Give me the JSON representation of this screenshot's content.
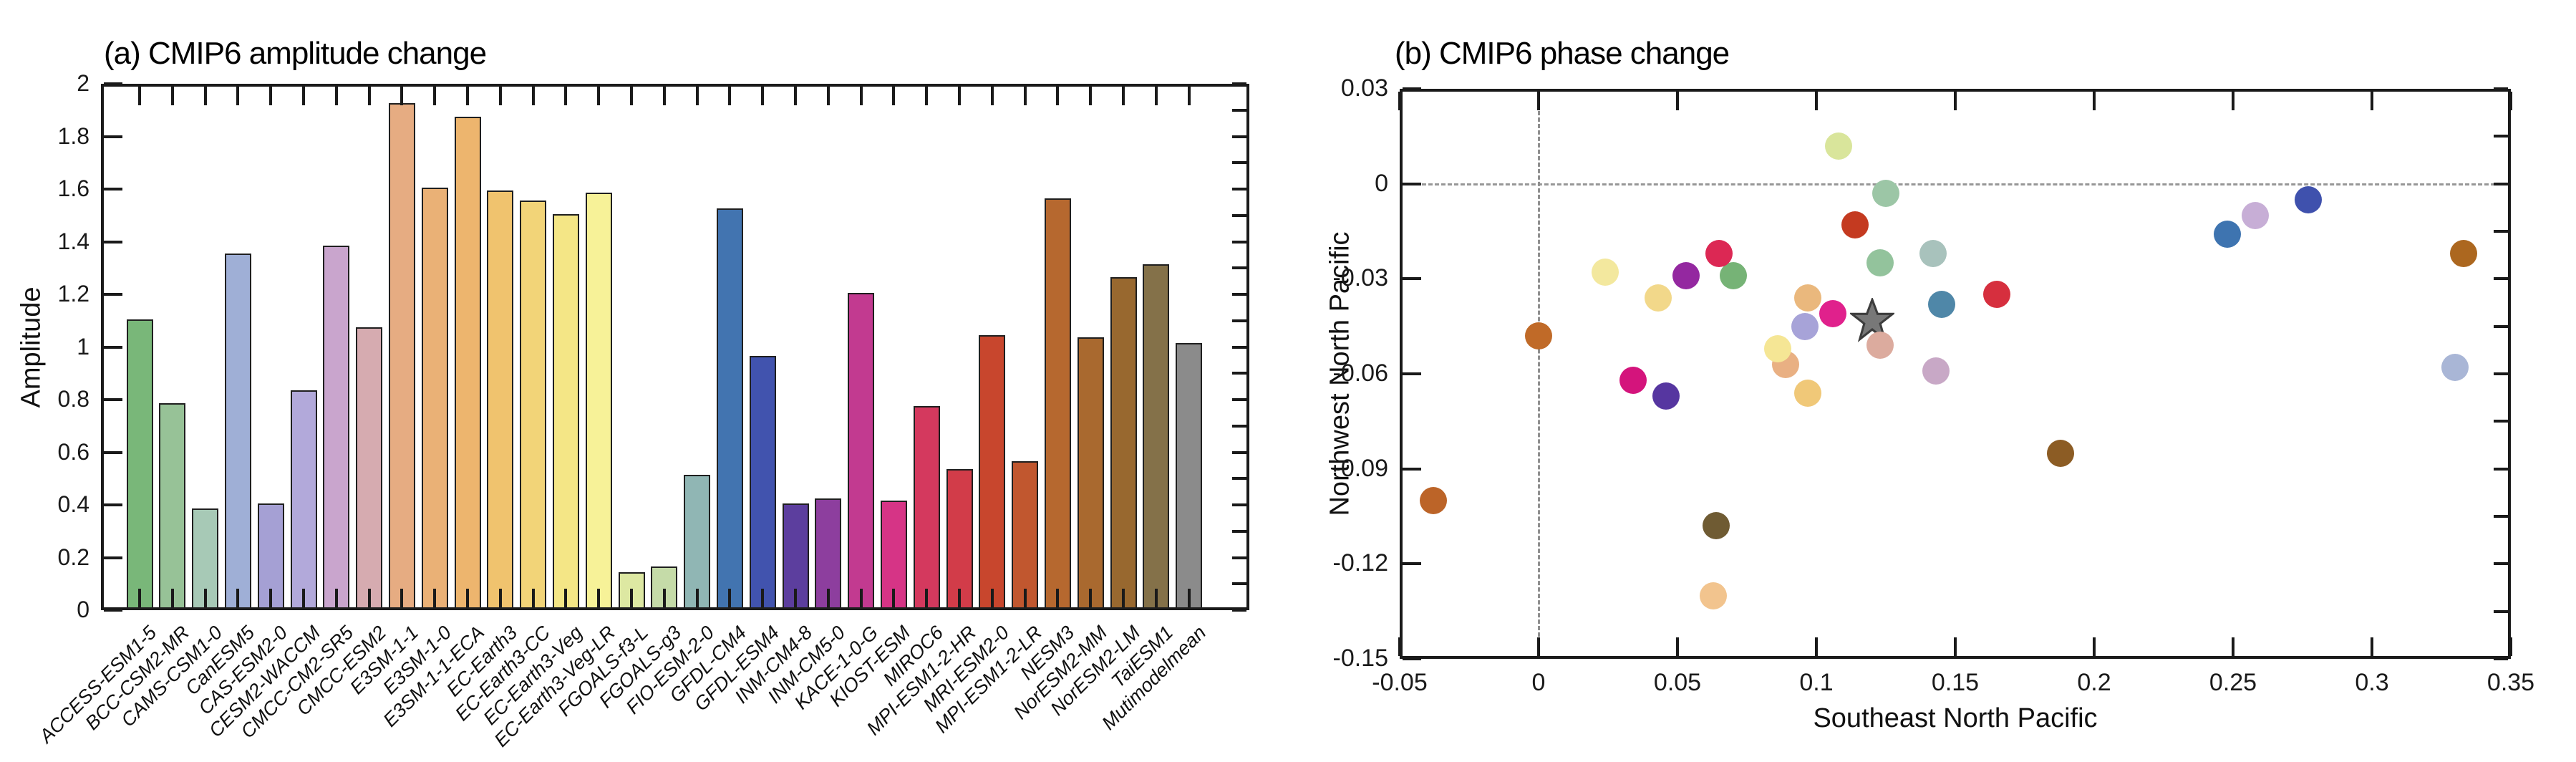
{
  "figure": {
    "background": "#ffffff",
    "panel_count": 2
  },
  "chart_data": [
    {
      "type": "bar",
      "title": "(a) CMIP6 amplitude change",
      "xlabel": "",
      "ylabel": "Amplitude",
      "ylim": [
        0,
        2
      ],
      "grid": false,
      "ytick_values": [
        0,
        0.2,
        0.4,
        0.6,
        0.8,
        1,
        1.2,
        1.4,
        1.6,
        1.8,
        2
      ],
      "ytick_labels": [
        "0",
        "0.2",
        "0.4",
        "0.6",
        "0.8",
        "1",
        "1.2",
        "1.4",
        "1.6",
        "1.8",
        "2"
      ],
      "minor_ytick_step": 0.1,
      "categories": [
        "ACCESS-ESM1-5",
        "BCC-CSM2-MR",
        "CAMS-CSM1-0",
        "CanESM5",
        "CAS-ESM2-0",
        "CESM2-WACCM",
        "CMCC-CM2-SR5",
        "CMCC-ESM2",
        "E3SM-1-1",
        "E3SM-1-0",
        "E3SM-1-1-ECA",
        "EC-Earth3",
        "EC-Earth3-CC",
        "EC-Earth3-Veg",
        "EC-Earth3-Veg-LR",
        "FGOALS-f3-L",
        "FGOALS-g3",
        "FIO-ESM-2-0",
        "GFDL-CM4",
        "GFDL-ESM4",
        "INM-CM4-8",
        "INM-CM5-0",
        "KACE-1-0-G",
        "KIOST-ESM",
        "MIROC6",
        "MPI-ESM1-2-HR",
        "MRI-ESM2-0",
        "MPI-ESM1-2-LR",
        "NESM3",
        "NorESM2-MM",
        "NorESM2-LM",
        "TaiESM1",
        "Mutimodelmean"
      ],
      "values": [
        1.1,
        0.78,
        0.38,
        1.35,
        0.4,
        0.83,
        1.38,
        1.07,
        1.92,
        1.6,
        1.87,
        1.59,
        1.55,
        1.5,
        1.58,
        0.14,
        0.16,
        0.51,
        1.52,
        0.96,
        0.4,
        0.42,
        1.2,
        0.41,
        0.77,
        0.53,
        1.04,
        0.56,
        1.56,
        1.03,
        1.26,
        1.31,
        1.01
      ],
      "colors": [
        "#79b779",
        "#97c297",
        "#a7c9b6",
        "#9fafd6",
        "#a5a0d4",
        "#b2a9da",
        "#c9a5cd",
        "#d6abb0",
        "#e6ac82",
        "#eab176",
        "#edb56e",
        "#f0c36e",
        "#f2d478",
        "#f4e686",
        "#f7f298",
        "#dde8a2",
        "#c5dba8",
        "#90b6b4",
        "#4274b0",
        "#4153ae",
        "#5c3e9e",
        "#8d3e9e",
        "#c23a90",
        "#d63486",
        "#d4395e",
        "#d23c49",
        "#c8462d",
        "#c1572f",
        "#b6682f",
        "#a9692f",
        "#98682f",
        "#847149",
        "#8b8b8b"
      ]
    },
    {
      "type": "scatter",
      "title": "(b) CMIP6 phase change",
      "xlabel": "Southeast North Pacific",
      "ylabel": "Northwest North Pacific",
      "xlim": [
        -0.05,
        0.35
      ],
      "ylim": [
        -0.15,
        0.03
      ],
      "grid": false,
      "zero_lines": "dashed",
      "xtick_values": [
        -0.05,
        0,
        0.05,
        0.1,
        0.15,
        0.2,
        0.25,
        0.3,
        0.35
      ],
      "xtick_labels": [
        "-0.05",
        "0",
        "0.05",
        "0.1",
        "0.15",
        "0.2",
        "0.25",
        "0.3",
        "0.35"
      ],
      "ytick_values": [
        0.03,
        0,
        -0.03,
        -0.06,
        -0.09,
        -0.12,
        -0.15
      ],
      "ytick_labels": [
        "0.03",
        "0",
        "-0.03",
        "-0.06",
        "-0.09",
        "-0.12",
        "-0.15"
      ],
      "minor_ytick_step": 0.015,
      "points": [
        {
          "model": "ACCESS-ESM1-5",
          "x": 0.07,
          "y": -0.029,
          "color": "#76b376"
        },
        {
          "model": "BCC-CSM2-MR",
          "x": 0.123,
          "y": -0.025,
          "color": "#93c39c"
        },
        {
          "model": "CAMS-CSM1-0",
          "x": 0.142,
          "y": -0.022,
          "color": "#a8c2bc"
        },
        {
          "model": "CanESM5",
          "x": 0.33,
          "y": -0.058,
          "color": "#a9b6d6"
        },
        {
          "model": "CAS-ESM2-0",
          "x": 0.096,
          "y": -0.045,
          "color": "#a7a3d8"
        },
        {
          "model": "CESM2-WACCM",
          "x": 0.258,
          "y": -0.01,
          "color": "#c7aed6"
        },
        {
          "model": "CMCC-CM2-SR5",
          "x": 0.143,
          "y": -0.059,
          "color": "#c8a8c6"
        },
        {
          "model": "CMCC-ESM2",
          "x": 0.123,
          "y": -0.051,
          "color": "#dcab9e"
        },
        {
          "model": "E3SM-1-1",
          "x": 0.097,
          "y": -0.036,
          "color": "#eab87d"
        },
        {
          "model": "E3SM-1-0",
          "x": 0.089,
          "y": -0.057,
          "color": "#e9b083"
        },
        {
          "model": "E3SM-1-1-ECA",
          "x": 0.063,
          "y": -0.13,
          "color": "#f2c48e"
        },
        {
          "model": "EC-Earth3",
          "x": 0.097,
          "y": -0.066,
          "color": "#f0c878"
        },
        {
          "model": "EC-Earth3-CC",
          "x": 0.043,
          "y": -0.036,
          "color": "#f2d88a"
        },
        {
          "model": "EC-Earth3-Veg",
          "x": 0.086,
          "y": -0.052,
          "color": "#f5e695"
        },
        {
          "model": "EC-Earth3-Veg-LR",
          "x": 0.024,
          "y": -0.028,
          "color": "#f3e89e"
        },
        {
          "model": "FGOALS-f3-L",
          "x": 0.108,
          "y": 0.012,
          "color": "#d9e59b"
        },
        {
          "model": "FGOALS-g3",
          "x": 0.125,
          "y": -0.003,
          "color": "#9cc6a6"
        },
        {
          "model": "FIO-ESM-2-0",
          "x": 0.145,
          "y": -0.038,
          "color": "#4f87a8"
        },
        {
          "model": "GFDL-CM4",
          "x": 0.248,
          "y": -0.016,
          "color": "#3e74b0"
        },
        {
          "model": "GFDL-ESM4",
          "x": 0.277,
          "y": -0.005,
          "color": "#3f51ad"
        },
        {
          "model": "INM-CM4-8",
          "x": 0.046,
          "y": -0.067,
          "color": "#5636a0"
        },
        {
          "model": "INM-CM5-0",
          "x": 0.053,
          "y": -0.029,
          "color": "#9428a0"
        },
        {
          "model": "KACE-1-0-G",
          "x": 0.106,
          "y": -0.041,
          "color": "#e0218c"
        },
        {
          "model": "KIOST-ESM",
          "x": 0.034,
          "y": -0.062,
          "color": "#d4147c"
        },
        {
          "model": "MIROC6",
          "x": 0.065,
          "y": -0.022,
          "color": "#dc2854"
        },
        {
          "model": "MPI-ESM1-2-HR",
          "x": 0.165,
          "y": -0.035,
          "color": "#d62f3e"
        },
        {
          "model": "MRI-ESM2-0",
          "x": 0.114,
          "y": -0.013,
          "color": "#c43a20"
        },
        {
          "model": "MPI-ESM1-2-LR",
          "x": 0.0,
          "y": -0.048,
          "color": "#c06a28"
        },
        {
          "model": "NESM3",
          "x": -0.038,
          "y": -0.1,
          "color": "#bc6428"
        },
        {
          "model": "NorESM2-MM",
          "x": 0.333,
          "y": -0.022,
          "color": "#ac671f"
        },
        {
          "model": "NorESM2-LM",
          "x": 0.188,
          "y": -0.085,
          "color": "#8c5c24"
        },
        {
          "model": "TaiESM1",
          "x": 0.064,
          "y": -0.108,
          "color": "#6f5b33"
        }
      ],
      "star": {
        "label": "Mutimodelmean",
        "x": 0.12,
        "y": -0.043,
        "fill": "#787878",
        "edge": "#3d3d3d"
      }
    }
  ]
}
